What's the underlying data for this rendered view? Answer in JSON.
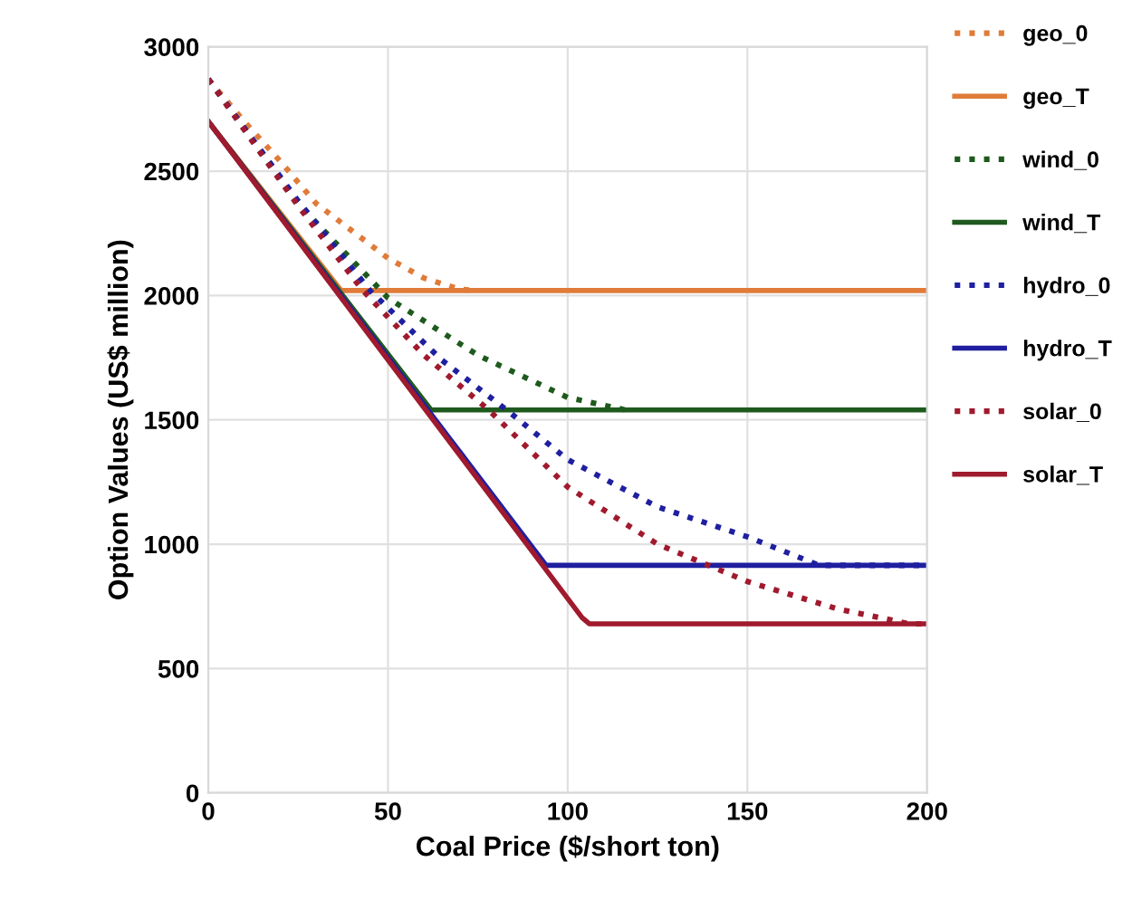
{
  "chart_data": {
    "type": "line",
    "xlabel": "Coal Price ($/short ton)",
    "ylabel": "Option Values (US$ million)",
    "xlim": [
      0,
      200
    ],
    "xticks": [
      0,
      50,
      100,
      150,
      200
    ],
    "ylim": [
      0,
      3000
    ],
    "yticks": [
      0,
      500,
      1000,
      1500,
      2000,
      2500,
      3000
    ],
    "grid": true,
    "legend": "right",
    "marker": "none",
    "series": [
      {
        "name": "geo_0",
        "color": "#e07b39",
        "line_style": "dotted",
        "x": [
          0,
          10,
          20,
          30,
          40,
          50,
          60,
          70,
          74
        ],
        "values": [
          2870,
          2700,
          2540,
          2370,
          2260,
          2150,
          2070,
          2025,
          2020
        ]
      },
      {
        "name": "geo_T",
        "color": "#e07b39",
        "line_style": "solid",
        "x": [
          0,
          37,
          200
        ],
        "values": [
          2700,
          2020,
          2020
        ]
      },
      {
        "name": "wind_0",
        "color": "#1e5a1e",
        "line_style": "dotted",
        "x": [
          0,
          25,
          50,
          75,
          100,
          116
        ],
        "values": [
          2870,
          2370,
          1990,
          1760,
          1590,
          1540
        ]
      },
      {
        "name": "wind_T",
        "color": "#1e5a1e",
        "line_style": "solid",
        "x": [
          0,
          62,
          200
        ],
        "values": [
          2700,
          1540,
          1540
        ]
      },
      {
        "name": "hydro_0",
        "color": "#1f1fa0",
        "line_style": "dotted",
        "x": [
          0,
          25,
          45,
          65,
          83,
          100,
          125,
          150,
          170,
          200
        ],
        "values": [
          2870,
          2380,
          2020,
          1740,
          1540,
          1340,
          1150,
          1030,
          915,
          915
        ]
      },
      {
        "name": "hydro_T",
        "color": "#1f1fa0",
        "line_style": "solid",
        "x": [
          0,
          94,
          200
        ],
        "values": [
          2700,
          915,
          915
        ]
      },
      {
        "name": "solar_0",
        "color": "#a01a2e",
        "line_style": "dotted",
        "x": [
          0,
          25,
          43,
          60,
          78,
          100,
          125,
          150,
          175,
          195,
          200
        ],
        "values": [
          2870,
          2360,
          2020,
          1760,
          1540,
          1230,
          1000,
          850,
          740,
          680,
          680
        ]
      },
      {
        "name": "solar_T",
        "color": "#a01a2e",
        "line_style": "solid",
        "x": [
          0,
          104,
          106,
          200
        ],
        "values": [
          2700,
          705,
          680,
          680
        ]
      }
    ]
  }
}
